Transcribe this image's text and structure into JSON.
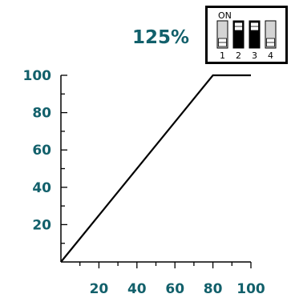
{
  "colors": {
    "label": "#12606b",
    "line": "#000000",
    "switch_off_fill": "#d4d4d4",
    "switch_on_fill": "#000000",
    "frame": "#000000"
  },
  "percent_label": "125%",
  "dip_switch": {
    "on_label": "ON",
    "switches": [
      {
        "number": "1",
        "on": false
      },
      {
        "number": "2",
        "on": true
      },
      {
        "number": "3",
        "on": true
      },
      {
        "number": "4",
        "on": false
      }
    ]
  },
  "chart_data": {
    "type": "line",
    "title": "",
    "xlabel": "",
    "ylabel": "",
    "xlim": [
      0,
      100
    ],
    "ylim": [
      0,
      100
    ],
    "x_ticks": [
      "20",
      "40",
      "60",
      "80",
      "100"
    ],
    "y_ticks": [
      "20",
      "40",
      "60",
      "80",
      "100"
    ],
    "grid": false,
    "series": [
      {
        "x": [
          0,
          80,
          100
        ],
        "y": [
          0,
          100,
          100
        ]
      }
    ]
  }
}
